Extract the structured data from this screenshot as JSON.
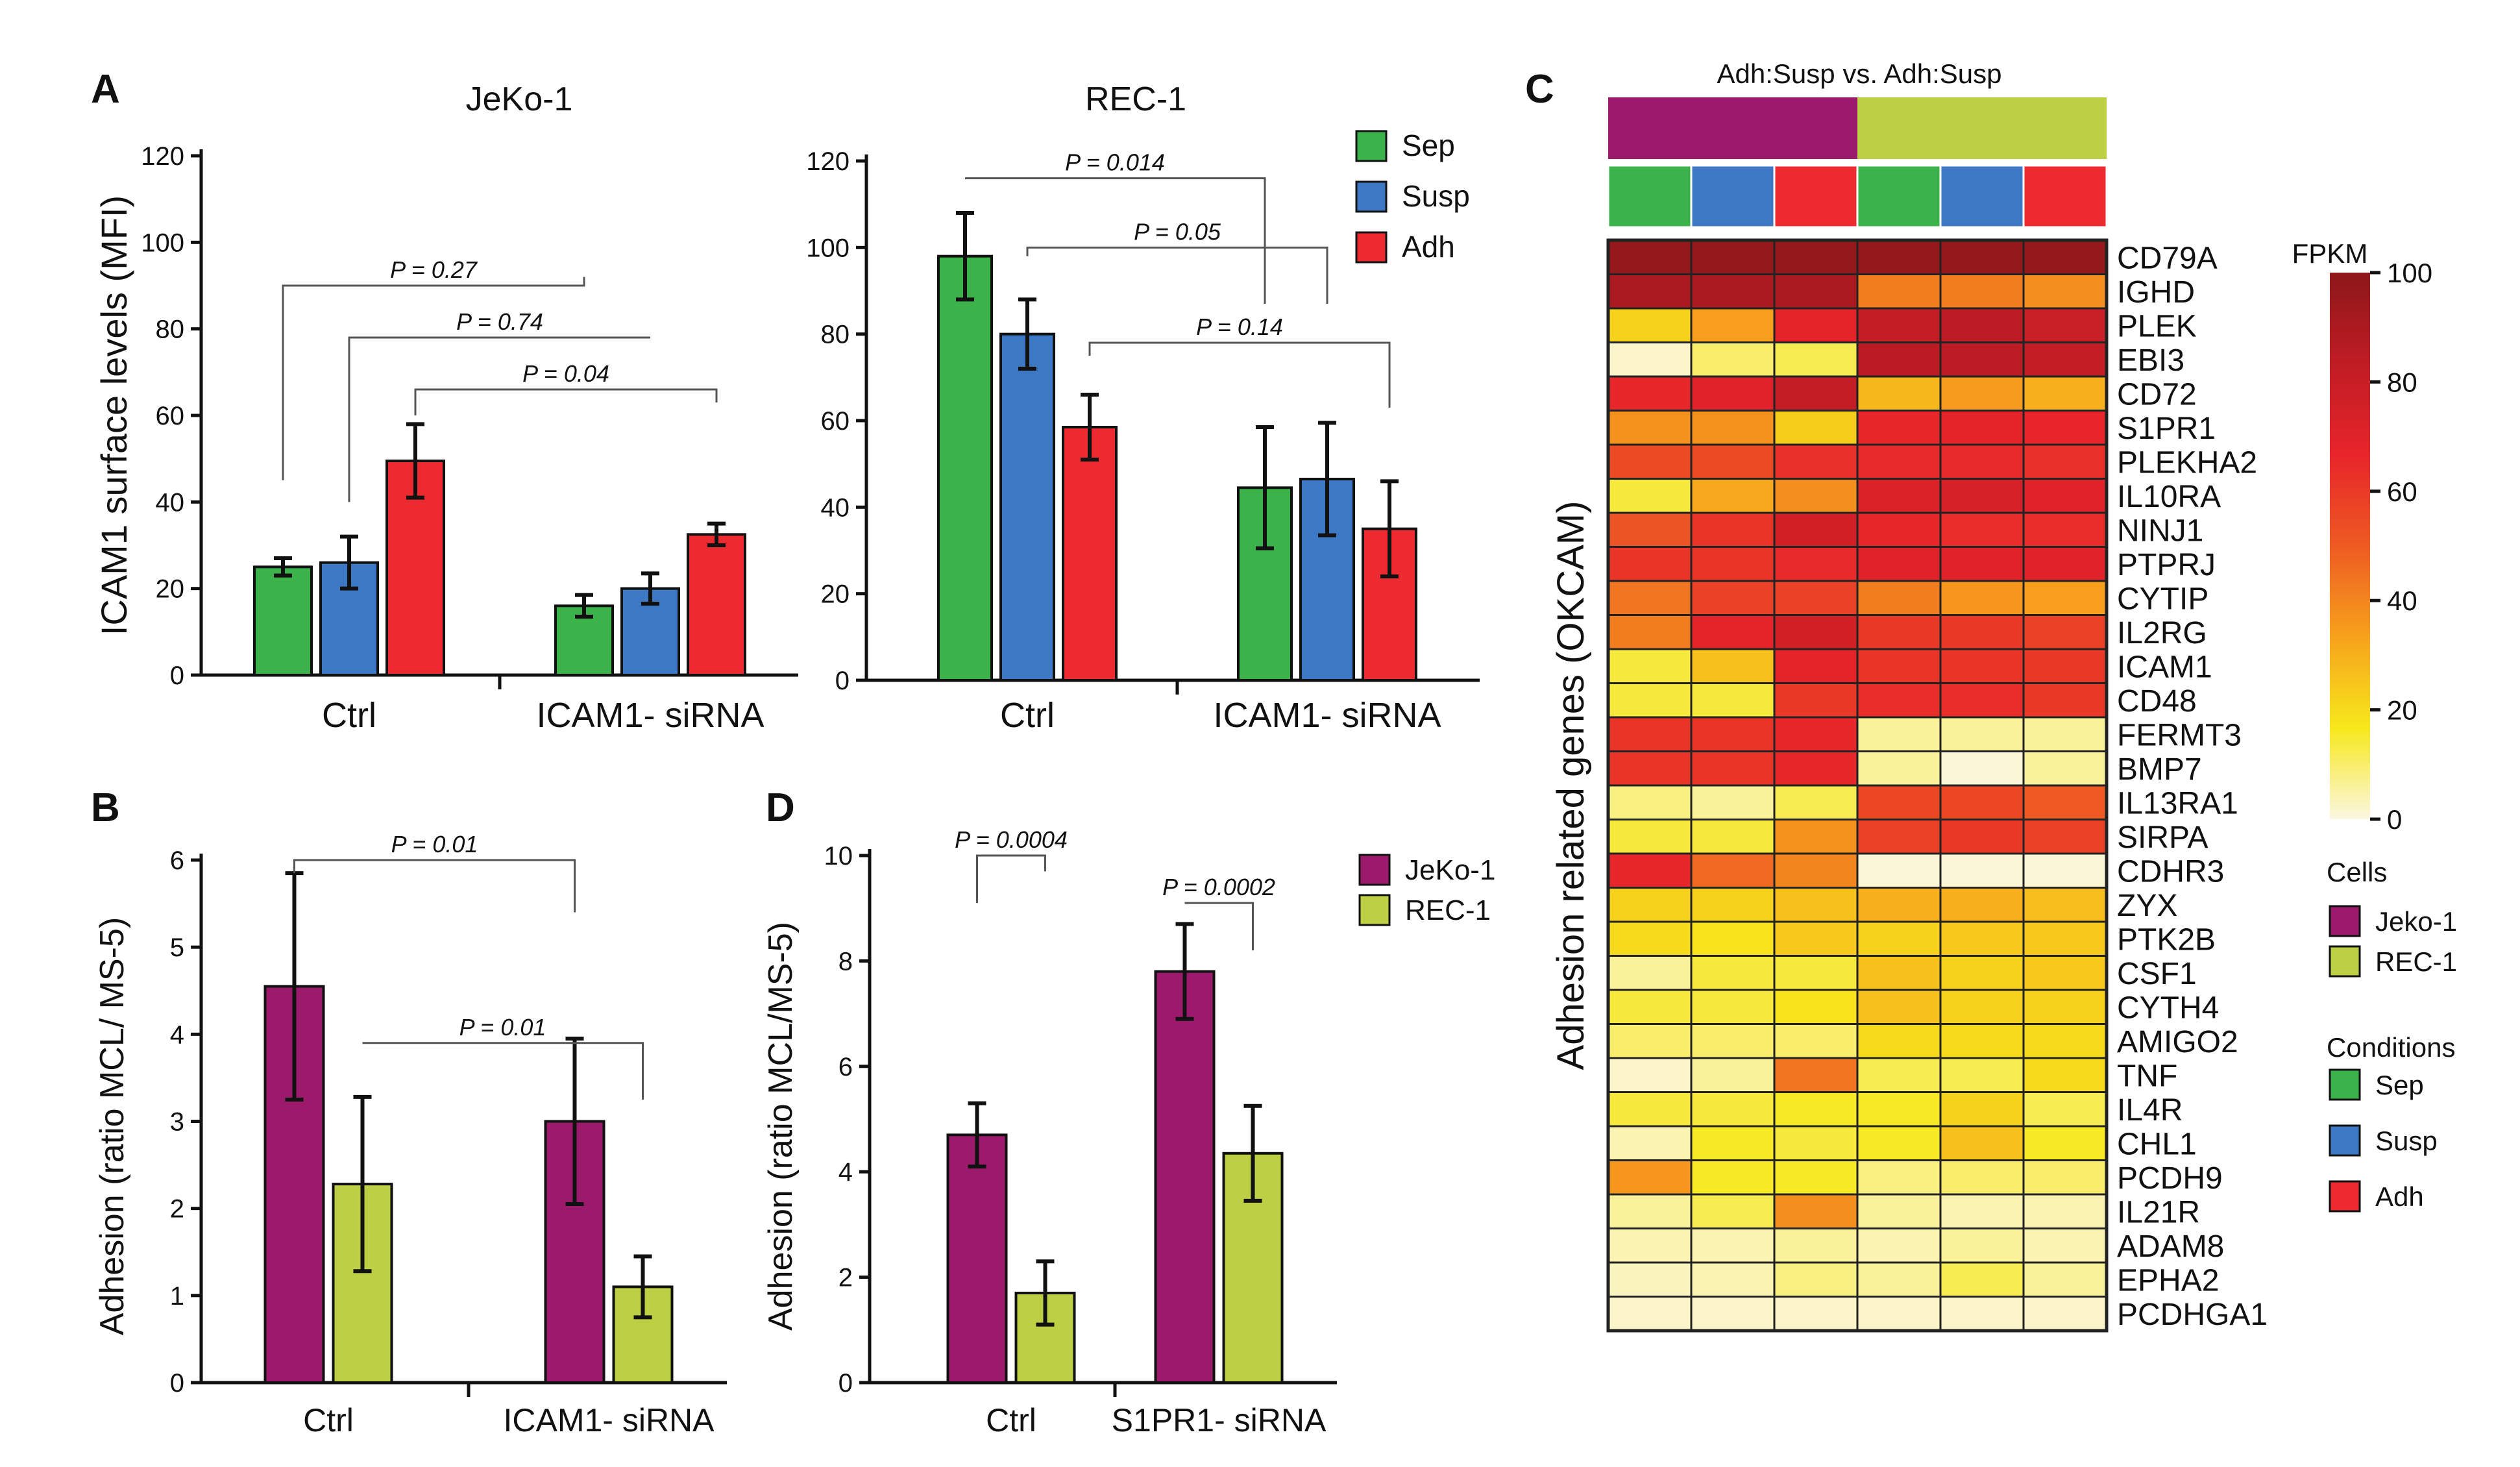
{
  "colors": {
    "sep": "#3bb34a",
    "susp": "#3d78c5",
    "adh": "#ec2a30",
    "jeko": "#9c1a6b",
    "rec": "#bccf45",
    "fpkm_stops": [
      "#fbf7e1",
      "#f7e81c",
      "#f7a21c",
      "#ee5a22",
      "#e8252b",
      "#c01c24",
      "#8c1719"
    ]
  },
  "panel_labels": {
    "a": "A",
    "b": "B",
    "c": "C",
    "d": "D"
  },
  "chart_data": [
    {
      "id": "A1",
      "type": "bar",
      "title": "JeKo-1",
      "ylabel": "ICAM1 surface levels (MFI)",
      "ylim": [
        0,
        120
      ],
      "yticks": [
        "0",
        "20",
        "40",
        "60",
        "80",
        "100",
        "120"
      ],
      "categories": [
        "Ctrl",
        "ICAM1- siRNA"
      ],
      "series": [
        {
          "name": "Sep",
          "color": "#3bb34a",
          "values": [
            25,
            16
          ],
          "err": [
            2,
            2.5
          ]
        },
        {
          "name": "Susp",
          "color": "#3d78c5",
          "values": [
            26,
            20
          ],
          "err": [
            6,
            3.5
          ]
        },
        {
          "name": "Adh",
          "color": "#ec2a30",
          "values": [
            49.5,
            32.5
          ],
          "err": [
            8.5,
            2.5
          ]
        }
      ],
      "annotations": [
        {
          "text": "P = 0.27",
          "from": [
            0,
            0
          ],
          "to": [
            0,
            1
          ],
          "level": 90,
          "y1": 45,
          "y2": 92
        },
        {
          "text": "P = 0.74",
          "from": [
            1,
            0
          ],
          "to": [
            1,
            1
          ],
          "level": 78,
          "y1": 40,
          "y2": 78
        },
        {
          "text": "P = 0.04",
          "from": [
            2,
            0
          ],
          "to": [
            2,
            1
          ],
          "level": 66,
          "y1": 60,
          "y2": 63
        }
      ]
    },
    {
      "id": "A2",
      "type": "bar",
      "title": "REC-1",
      "ylabel": "",
      "ylim": [
        0,
        120
      ],
      "yticks": [
        "0",
        "20",
        "40",
        "60",
        "80",
        "100",
        "120"
      ],
      "categories": [
        "Ctrl",
        "ICAM1- siRNA"
      ],
      "series": [
        {
          "name": "Sep",
          "color": "#3bb34a",
          "values": [
            98,
            44.5
          ],
          "err": [
            10,
            14
          ]
        },
        {
          "name": "Susp",
          "color": "#3d78c5",
          "values": [
            80,
            46.5
          ],
          "err": [
            8,
            13
          ]
        },
        {
          "name": "Adh",
          "color": "#ec2a30",
          "values": [
            58.5,
            35
          ],
          "err": [
            7.5,
            11
          ]
        }
      ],
      "legend": [
        "Sep",
        "Susp",
        "Adh"
      ],
      "annotations": [
        {
          "text": "P = 0.014",
          "from": [
            0,
            0
          ],
          "to": [
            0,
            1
          ],
          "level": 116,
          "y1": 116,
          "y2": 87
        },
        {
          "text": "P = 0.05",
          "from": [
            1,
            0
          ],
          "to": [
            1,
            1
          ],
          "level": 100,
          "y1": 98,
          "y2": 87
        },
        {
          "text": "P = 0.14",
          "from": [
            2,
            0
          ],
          "to": [
            2,
            1
          ],
          "level": 78,
          "y1": 75,
          "y2": 63
        }
      ]
    },
    {
      "id": "B",
      "type": "bar",
      "title": "",
      "ylabel": "Adhesion (ratio MCL/ MS-5)",
      "ylim": [
        0,
        6
      ],
      "yticks": [
        "0",
        "1",
        "2",
        "3",
        "4",
        "5",
        "6"
      ],
      "categories": [
        "Ctrl",
        "ICAM1- siRNA"
      ],
      "series": [
        {
          "name": "JeKo-1",
          "color": "#9c1a6b",
          "values": [
            4.55,
            3.0
          ],
          "err": [
            1.3,
            0.95
          ]
        },
        {
          "name": "REC-1",
          "color": "#bccf45",
          "values": [
            2.28,
            1.1
          ],
          "err": [
            1.0,
            0.35
          ]
        }
      ],
      "annotations": [
        {
          "text": "P = 0.01",
          "from": [
            0,
            0
          ],
          "to": [
            0,
            1
          ],
          "level": 6.0,
          "y1": 5.85,
          "y2": 5.4
        },
        {
          "text": "P = 0.01",
          "from": [
            1,
            0
          ],
          "to": [
            1,
            1
          ],
          "level": 3.9,
          "y1": 3.9,
          "y2": 3.25
        }
      ]
    },
    {
      "id": "D",
      "type": "bar",
      "title": "",
      "ylabel": "Adhesion (ratio MCL/MS-5)",
      "ylim": [
        0,
        10
      ],
      "yticks": [
        "0",
        "2",
        "4",
        "6",
        "8",
        "10"
      ],
      "categories": [
        "Ctrl",
        "S1PR1- siRNA"
      ],
      "series": [
        {
          "name": "JeKo-1",
          "color": "#9c1a6b",
          "values": [
            4.7,
            7.8
          ],
          "err": [
            0.6,
            0.9
          ]
        },
        {
          "name": "REC-1",
          "color": "#bccf45",
          "values": [
            1.7,
            4.35
          ],
          "err": [
            0.6,
            0.9
          ]
        }
      ],
      "legend": [
        "JeKo-1",
        "REC-1"
      ],
      "annotations": [
        {
          "text": "P = 0.0004",
          "from": [
            0,
            0
          ],
          "to": [
            1,
            0
          ],
          "level": 10.0,
          "y1": 9.1,
          "y2": 9.7
        },
        {
          "text": "P = 0.0002",
          "from": [
            0,
            1
          ],
          "to": [
            1,
            1
          ],
          "level": 9.1,
          "y1": 9.1,
          "y2": 8.2
        }
      ]
    },
    {
      "id": "C",
      "type": "heatmap",
      "title": "Adh:Susp vs. Adh:Susp",
      "ylabel": "Adhesion related genes (OKCAM)",
      "columns": [
        {
          "cell": "Jeko-1",
          "condition": "Sep"
        },
        {
          "cell": "Jeko-1",
          "condition": "Susp"
        },
        {
          "cell": "Jeko-1",
          "condition": "Adh"
        },
        {
          "cell": "REC-1",
          "condition": "Sep"
        },
        {
          "cell": "REC-1",
          "condition": "Susp"
        },
        {
          "cell": "REC-1",
          "condition": "Adh"
        }
      ],
      "genes": [
        "CD79A",
        "IGHD",
        "PLEK",
        "EBI3",
        "CD72",
        "S1PR1",
        "PLEKHA2",
        "IL10RA",
        "NINJ1",
        "PTPRJ",
        "CYTIP",
        "IL2RG",
        "ICAM1",
        "CD48",
        "FERMT3",
        "BMP7",
        "IL13RA1",
        "SIRPA",
        "CDHR3",
        "ZYX",
        "PTK2B",
        "CSF1",
        "CYTH4",
        "AMIGO2",
        "TNF",
        "IL4R",
        "CHL1",
        "PCDH9",
        "IL21R",
        "ADAM8",
        "EPHA2",
        "PCDHGA1"
      ],
      "values": [
        [
          97,
          97,
          97,
          97,
          97,
          97
        ],
        [
          90,
          90,
          90,
          42,
          42,
          38
        ],
        [
          22,
          34,
          68,
          82,
          84,
          80
        ],
        [
          2,
          10,
          12,
          85,
          84,
          82
        ],
        [
          66,
          70,
          82,
          28,
          35,
          30
        ],
        [
          37,
          37,
          23,
          66,
          68,
          67
        ],
        [
          55,
          55,
          63,
          65,
          65,
          63
        ],
        [
          14,
          32,
          38,
          72,
          74,
          70
        ],
        [
          52,
          62,
          76,
          66,
          64,
          64
        ],
        [
          62,
          62,
          65,
          70,
          70,
          70
        ],
        [
          44,
          58,
          58,
          42,
          36,
          34
        ],
        [
          42,
          68,
          76,
          60,
          60,
          58
        ],
        [
          14,
          26,
          68,
          62,
          62,
          60
        ],
        [
          14,
          14,
          60,
          64,
          64,
          60
        ],
        [
          62,
          62,
          66,
          6,
          6,
          6
        ],
        [
          62,
          62,
          66,
          6,
          1,
          6
        ],
        [
          8,
          6,
          12,
          56,
          56,
          50
        ],
        [
          14,
          14,
          37,
          58,
          60,
          58
        ],
        [
          66,
          46,
          40,
          1,
          1,
          1
        ],
        [
          22,
          22,
          26,
          30,
          30,
          27
        ],
        [
          20,
          18,
          24,
          22,
          24,
          24
        ],
        [
          6,
          14,
          14,
          26,
          22,
          24
        ],
        [
          14,
          14,
          18,
          26,
          22,
          22
        ],
        [
          10,
          10,
          10,
          20,
          20,
          20
        ],
        [
          2,
          6,
          44,
          12,
          12,
          20
        ],
        [
          14,
          14,
          16,
          16,
          22,
          12
        ],
        [
          4,
          16,
          14,
          16,
          26,
          16
        ],
        [
          36,
          16,
          16,
          8,
          10,
          10
        ],
        [
          6,
          12,
          38,
          6,
          4,
          4
        ],
        [
          4,
          4,
          6,
          4,
          6,
          4
        ],
        [
          3,
          4,
          8,
          6,
          12,
          6
        ],
        [
          2,
          2,
          2,
          2,
          2,
          2
        ]
      ],
      "scale": {
        "label": "FPKM",
        "min": 0,
        "max": 100,
        "ticks": [
          "0",
          "20",
          "40",
          "60",
          "80",
          "100"
        ]
      },
      "legend_cells": {
        "title": "Cells",
        "items": [
          "Jeko-1",
          "REC-1"
        ]
      },
      "legend_conditions": {
        "title": "Conditions",
        "items": [
          "Sep",
          "Susp",
          "Adh"
        ]
      }
    }
  ]
}
